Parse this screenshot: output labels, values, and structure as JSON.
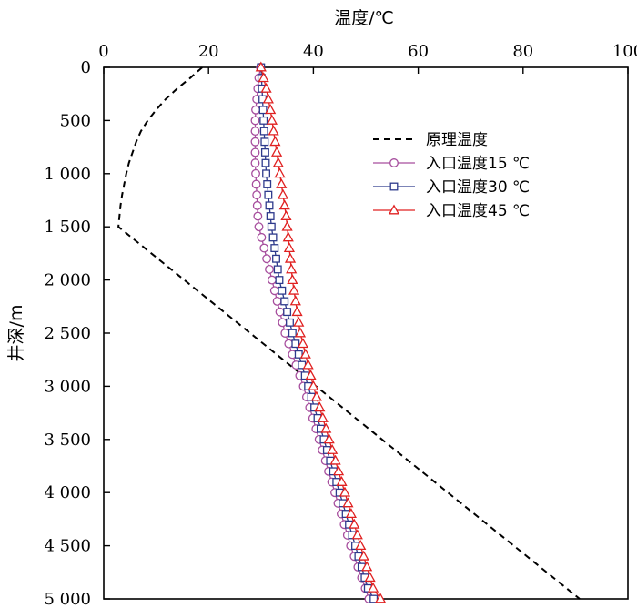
{
  "chart_data": {
    "type": "line",
    "xlabel": "温度/℃",
    "ylabel": "井深/m",
    "x_axis_position": "top",
    "y_axis_inverted": true,
    "xlim": [
      0,
      100
    ],
    "ylim": [
      0,
      5000
    ],
    "x_ticks": [
      0,
      20,
      40,
      60,
      80,
      100
    ],
    "x_tick_labels": [
      "0",
      "20",
      "40",
      "60",
      "80",
      "100"
    ],
    "y_ticks": [
      0,
      500,
      1000,
      1500,
      2000,
      2500,
      3000,
      3500,
      4000,
      4500,
      5000
    ],
    "y_tick_labels": [
      "0",
      "500",
      "1 000",
      "1 500",
      "2 000",
      "2 500",
      "3 000",
      "3 500",
      "4 000",
      "4 500",
      "5 000"
    ],
    "grid": false,
    "legend_position": "upper-right",
    "series": [
      {
        "name": "原理温度",
        "color": "#000000",
        "line_style": "dashed",
        "marker": "none",
        "depth": [
          0,
          100,
          200,
          300,
          400,
          500,
          600,
          700,
          800,
          900,
          1000,
          1100,
          1200,
          1300,
          1400,
          1500,
          5000
        ],
        "temperature": [
          18.8,
          16.5,
          14.0,
          11.8,
          10.0,
          8.4,
          7.1,
          6.2,
          5.5,
          4.8,
          4.3,
          3.9,
          3.5,
          3.2,
          3.0,
          2.8,
          90.8
        ]
      },
      {
        "name": "入口温度15 ℃",
        "color": "#a64d9d",
        "line_style": "solid",
        "marker": "circle",
        "depth": [
          0,
          100,
          200,
          300,
          400,
          500,
          600,
          700,
          800,
          900,
          1000,
          1100,
          1200,
          1300,
          1400,
          1500,
          1600,
          1700,
          1800,
          1900,
          2000,
          2100,
          2200,
          2300,
          2400,
          2500,
          2600,
          2700,
          2800,
          2900,
          3000,
          3100,
          3200,
          3300,
          3400,
          3500,
          3600,
          3700,
          3800,
          3900,
          4000,
          4100,
          4200,
          4300,
          4400,
          4500,
          4600,
          4700,
          4800,
          4900,
          5000
        ],
        "temperature": [
          29.9,
          29.6,
          29.4,
          29.2,
          29.0,
          28.9,
          28.9,
          28.9,
          28.9,
          28.9,
          29.0,
          29.1,
          29.2,
          29.3,
          29.4,
          29.6,
          30.1,
          30.6,
          31.1,
          31.6,
          32.1,
          32.6,
          33.1,
          33.6,
          34.1,
          34.6,
          35.3,
          36.0,
          36.7,
          37.4,
          38.1,
          38.7,
          39.3,
          39.9,
          40.5,
          41.1,
          41.7,
          42.3,
          42.9,
          43.5,
          44.1,
          44.7,
          45.3,
          45.9,
          46.5,
          47.1,
          47.8,
          48.5,
          49.2,
          49.9,
          50.6
        ]
      },
      {
        "name": "入口温度30 ℃",
        "color": "#2e3a8c",
        "line_style": "solid",
        "marker": "square",
        "depth": [
          0,
          100,
          200,
          300,
          400,
          500,
          600,
          700,
          800,
          900,
          1000,
          1100,
          1200,
          1300,
          1400,
          1500,
          1600,
          1700,
          1800,
          1900,
          2000,
          2100,
          2200,
          2300,
          2400,
          2500,
          2600,
          2700,
          2800,
          2900,
          3000,
          3100,
          3200,
          3300,
          3400,
          3500,
          3600,
          3700,
          3800,
          3900,
          4000,
          4100,
          4200,
          4300,
          4400,
          4500,
          4600,
          4700,
          4800,
          4900,
          5000
        ],
        "temperature": [
          30.0,
          30.1,
          30.2,
          30.3,
          30.4,
          30.5,
          30.6,
          30.7,
          30.8,
          30.9,
          31.0,
          31.2,
          31.4,
          31.6,
          31.8,
          32.0,
          32.3,
          32.6,
          32.9,
          33.2,
          33.5,
          34.0,
          34.5,
          35.0,
          35.5,
          36.0,
          36.6,
          37.2,
          37.8,
          38.4,
          39.0,
          39.6,
          40.2,
          40.8,
          41.4,
          42.0,
          42.6,
          43.2,
          43.8,
          44.4,
          45.0,
          45.6,
          46.2,
          46.8,
          47.4,
          48.0,
          48.6,
          49.2,
          49.8,
          50.4,
          51.5
        ]
      },
      {
        "name": "入口温度45 ℃",
        "color": "#e02020",
        "line_style": "solid",
        "marker": "triangle",
        "depth": [
          0,
          100,
          200,
          300,
          400,
          500,
          600,
          700,
          800,
          900,
          1000,
          1100,
          1200,
          1300,
          1400,
          1500,
          1600,
          1700,
          1800,
          1900,
          2000,
          2100,
          2200,
          2300,
          2400,
          2500,
          2600,
          2700,
          2800,
          2900,
          3000,
          3100,
          3200,
          3300,
          3400,
          3500,
          3600,
          3700,
          3800,
          3900,
          4000,
          4100,
          4200,
          4300,
          4400,
          4500,
          4600,
          4700,
          4800,
          4900,
          5000
        ],
        "temperature": [
          30.0,
          30.5,
          31.0,
          31.4,
          31.8,
          32.1,
          32.4,
          32.7,
          33.0,
          33.3,
          33.6,
          33.9,
          34.2,
          34.5,
          34.8,
          35.0,
          35.2,
          35.4,
          35.6,
          35.8,
          36.0,
          36.3,
          36.6,
          36.9,
          37.2,
          37.5,
          38.0,
          38.5,
          39.0,
          39.5,
          40.0,
          40.6,
          41.2,
          41.8,
          42.4,
          43.0,
          43.6,
          44.2,
          44.8,
          45.4,
          46.0,
          46.6,
          47.2,
          47.8,
          48.4,
          49.0,
          49.6,
          50.2,
          50.8,
          51.4,
          52.8
        ]
      }
    ]
  }
}
